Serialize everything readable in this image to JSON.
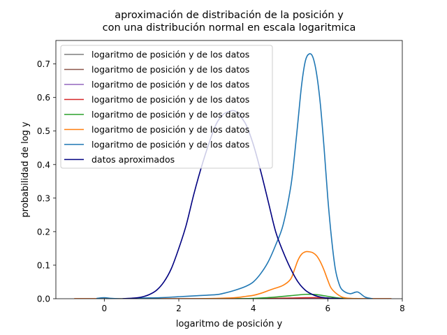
{
  "chart_data": {
    "type": "line",
    "title": "aproximación de distribación de la posición y\ncon una distribución normal en escala logaritmica",
    "title_lines": [
      "aproximación de distribación de la posición y",
      "con una distribución normal en escala logaritmica"
    ],
    "xlabel": "logaritmo de posición y",
    "ylabel": "probabilidad de log y",
    "xlim": [
      -1.3,
      8.0
    ],
    "ylim": [
      0.0,
      0.77
    ],
    "xticks": [
      0,
      2,
      4,
      6,
      8
    ],
    "xtick_labels": [
      "0",
      "2",
      "4",
      "6",
      "8"
    ],
    "yticks": [
      0.0,
      0.1,
      0.2,
      0.3,
      0.4,
      0.5,
      0.6,
      0.7
    ],
    "ytick_labels": [
      "0.0",
      "0.1",
      "0.2",
      "0.3",
      "0.4",
      "0.5",
      "0.6",
      "0.7"
    ],
    "grid": false,
    "legend_position": "top-left",
    "series": [
      {
        "name": "logaritmo de posición y de los datos",
        "color": "#7f7f7f",
        "x": [
          4.5,
          5.0,
          5.5,
          6.0,
          6.5
        ],
        "y": [
          0.0,
          0.0,
          0.001,
          0.0,
          0.0
        ]
      },
      {
        "name": "logaritmo de posición y de los datos",
        "color": "#8c564b",
        "x": [
          4.5,
          5.0,
          5.5,
          6.0,
          6.5
        ],
        "y": [
          0.0,
          0.001,
          0.002,
          0.001,
          0.0
        ]
      },
      {
        "name": "logaritmo de posición y de los datos",
        "color": "#9467bd",
        "x": [
          4.5,
          5.0,
          5.5,
          6.0,
          6.5
        ],
        "y": [
          0.0,
          0.001,
          0.002,
          0.001,
          0.0
        ]
      },
      {
        "name": "logaritmo de posición y de los datos",
        "color": "#d62728",
        "x": [
          -0.8,
          0.0,
          1.0,
          2.0,
          3.0,
          4.0,
          4.6,
          5.0,
          5.4,
          5.8,
          6.2,
          7.0,
          7.7
        ],
        "y": [
          0.0,
          0.0,
          0.0,
          0.0,
          0.0,
          0.0,
          0.001,
          0.002,
          0.003,
          0.003,
          0.001,
          0.0,
          0.0
        ]
      },
      {
        "name": "logaritmo de posición y de los datos",
        "color": "#2ca02c",
        "x": [
          3.5,
          4.0,
          4.5,
          5.0,
          5.4,
          5.7,
          6.0,
          6.3,
          6.6
        ],
        "y": [
          0.0,
          0.001,
          0.004,
          0.009,
          0.013,
          0.012,
          0.007,
          0.002,
          0.0
        ]
      },
      {
        "name": "logaritmo de posición y de los datos",
        "color": "#ff7f0e",
        "x": [
          -0.8,
          0.0,
          1.0,
          2.0,
          2.5,
          3.0,
          3.5,
          3.8,
          4.0,
          4.2,
          4.5,
          4.8,
          5.0,
          5.1,
          5.2,
          5.3,
          5.4,
          5.5,
          5.6,
          5.7,
          5.8,
          5.9,
          6.0,
          6.1,
          6.3,
          6.5,
          7.0,
          7.7
        ],
        "y": [
          0.0,
          0.0,
          0.0,
          0.0,
          0.0,
          0.001,
          0.003,
          0.007,
          0.01,
          0.016,
          0.028,
          0.04,
          0.058,
          0.085,
          0.115,
          0.133,
          0.14,
          0.14,
          0.137,
          0.128,
          0.11,
          0.085,
          0.055,
          0.03,
          0.01,
          0.002,
          0.0,
          0.0
        ]
      },
      {
        "name": "logaritmo de posición y de los datos",
        "color": "#1f77b4",
        "x": [
          -0.2,
          0.0,
          0.2,
          0.5,
          1.0,
          1.5,
          2.0,
          2.5,
          3.0,
          3.2,
          3.5,
          3.8,
          4.0,
          4.2,
          4.4,
          4.6,
          4.8,
          5.0,
          5.1,
          5.2,
          5.3,
          5.4,
          5.5,
          5.6,
          5.7,
          5.8,
          5.9,
          6.0,
          6.1,
          6.2,
          6.3,
          6.4,
          6.6,
          6.8,
          7.0,
          7.2
        ],
        "y": [
          0.001,
          0.003,
          0.001,
          0.0,
          0.002,
          0.003,
          0.006,
          0.009,
          0.012,
          0.016,
          0.025,
          0.037,
          0.05,
          0.075,
          0.11,
          0.16,
          0.22,
          0.33,
          0.42,
          0.53,
          0.64,
          0.71,
          0.73,
          0.72,
          0.67,
          0.58,
          0.45,
          0.3,
          0.18,
          0.09,
          0.045,
          0.025,
          0.015,
          0.02,
          0.005,
          0.0
        ]
      },
      {
        "name": "datos aproximados",
        "color": "#000080",
        "x": [
          0.5,
          0.8,
          1.0,
          1.2,
          1.4,
          1.6,
          1.8,
          2.0,
          2.2,
          2.4,
          2.6,
          2.8,
          3.0,
          3.2,
          3.4,
          3.5,
          3.6,
          3.8,
          4.0,
          4.2,
          4.4,
          4.6,
          4.8,
          5.0,
          5.2,
          5.4,
          5.6,
          5.8,
          6.0,
          6.2,
          6.4
        ],
        "y": [
          0.0,
          0.002,
          0.005,
          0.012,
          0.025,
          0.05,
          0.09,
          0.15,
          0.22,
          0.31,
          0.39,
          0.46,
          0.52,
          0.55,
          0.56,
          0.56,
          0.55,
          0.52,
          0.46,
          0.38,
          0.29,
          0.2,
          0.14,
          0.09,
          0.05,
          0.025,
          0.012,
          0.005,
          0.002,
          0.001,
          0.0
        ]
      }
    ]
  }
}
